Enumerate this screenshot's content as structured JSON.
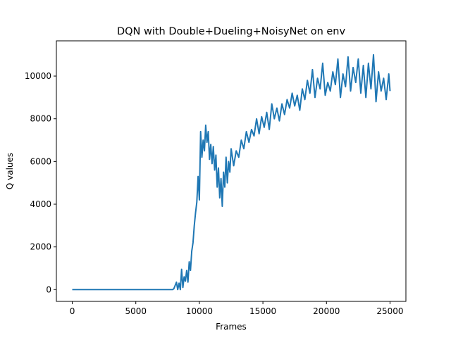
{
  "chart_data": {
    "type": "line",
    "title": "DQN with Double+Dueling+NoisyNet on env",
    "xlabel": "Frames",
    "ylabel": "Q values",
    "xlim": [
      -1250,
      26250
    ],
    "ylim": [
      -550,
      11650
    ],
    "xticks": [
      0,
      5000,
      10000,
      15000,
      20000,
      25000
    ],
    "xtick_labels": [
      "0",
      "5000",
      "10000",
      "15000",
      "20000",
      "25000"
    ],
    "yticks": [
      0,
      2000,
      4000,
      6000,
      8000,
      10000
    ],
    "ytick_labels": [
      "0",
      "2000",
      "4000",
      "6000",
      "8000",
      "10000"
    ],
    "grid": false,
    "series": [
      {
        "name": "Q values",
        "color": "#1f77b4",
        "x": [
          0,
          7900,
          8000,
          8200,
          8300,
          8400,
          8500,
          8600,
          8700,
          8800,
          8900,
          9000,
          9100,
          9200,
          9300,
          9400,
          9500,
          9600,
          9700,
          9800,
          9900,
          10000,
          10100,
          10200,
          10300,
          10400,
          10500,
          10600,
          10700,
          10800,
          10900,
          11000,
          11100,
          11200,
          11300,
          11400,
          11500,
          11600,
          11700,
          11800,
          11900,
          12000,
          12100,
          12200,
          12300,
          12400,
          12500,
          12700,
          12900,
          13100,
          13300,
          13500,
          13700,
          13900,
          14100,
          14300,
          14500,
          14700,
          14900,
          15100,
          15300,
          15500,
          15700,
          15900,
          16100,
          16300,
          16500,
          16700,
          16900,
          17100,
          17300,
          17500,
          17700,
          17900,
          18100,
          18300,
          18500,
          18700,
          18900,
          19100,
          19300,
          19500,
          19700,
          19900,
          20100,
          20300,
          20500,
          20700,
          20900,
          21100,
          21300,
          21500,
          21700,
          21900,
          22100,
          22300,
          22500,
          22700,
          22900,
          23100,
          23300,
          23500,
          23700,
          23900,
          24100,
          24300,
          24500,
          24700,
          24900,
          25000
        ],
        "y": [
          0,
          0,
          50,
          350,
          0,
          300,
          0,
          950,
          100,
          600,
          400,
          900,
          350,
          1300,
          900,
          1800,
          2200,
          3000,
          3600,
          4100,
          5300,
          4200,
          7400,
          6200,
          7000,
          6500,
          7700,
          6900,
          7400,
          6100,
          6800,
          5900,
          6700,
          5600,
          6300,
          4800,
          5700,
          4300,
          5200,
          3900,
          5500,
          4800,
          6200,
          5000,
          6000,
          5500,
          6600,
          5800,
          6500,
          6200,
          7000,
          6600,
          7400,
          6900,
          7500,
          7200,
          8000,
          7300,
          8100,
          7600,
          8300,
          7500,
          8700,
          8000,
          8500,
          7900,
          8700,
          8200,
          8900,
          8500,
          9200,
          8600,
          9100,
          8400,
          9400,
          8900,
          9800,
          9200,
          10300,
          9000,
          9900,
          9400,
          10600,
          9100,
          9700,
          9300,
          10200,
          9600,
          10800,
          9000,
          10100,
          9500,
          10900,
          9300,
          10400,
          9700,
          10800,
          9200,
          10500,
          9000,
          10600,
          9400,
          11000,
          8800,
          10200,
          9300,
          9900,
          8900,
          10100,
          9300
        ]
      }
    ]
  }
}
